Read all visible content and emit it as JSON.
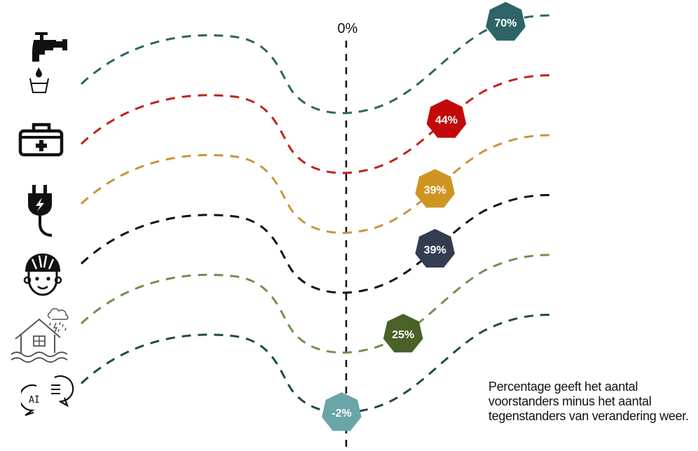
{
  "zero_label": "0%",
  "note": "Percentage geeft het aantal voorstanders minus het aantal tegenstanders van verandering weer.",
  "icons": [
    "tap-water-icon",
    "first-aid-kit-icon",
    "electric-plug-icon",
    "helmet-child-icon",
    "flooded-house-icon",
    "ai-chat-icon"
  ],
  "chart_data": {
    "type": "line",
    "title": "",
    "xlabel": "",
    "ylabel": "",
    "xlim": [
      -100,
      100
    ],
    "reference_line": 0,
    "series": [
      {
        "value": 70,
        "label": "70%",
        "color": "#2e6467",
        "badge_color": "#2e6467",
        "icon": "tap-water-icon"
      },
      {
        "value": 44,
        "label": "44%",
        "color": "#c2221a",
        "badge_color": "#c20a0a",
        "icon": "first-aid-kit-icon"
      },
      {
        "value": 39,
        "label": "39%",
        "color": "#c9953a",
        "badge_color": "#cf9522",
        "icon": "electric-plug-icon"
      },
      {
        "value": 39,
        "label": "39%",
        "color": "#111111",
        "badge_color": "#333d52",
        "icon": "helmet-child-icon"
      },
      {
        "value": 25,
        "label": "25%",
        "color": "#6e914f",
        "badge_color": "#4a6128",
        "icon": "flooded-house-icon"
      },
      {
        "value": -2,
        "label": "-2%",
        "color": "#1f4a4d",
        "badge_color": "#6aa5a8",
        "icon": "ai-chat-icon"
      }
    ]
  }
}
